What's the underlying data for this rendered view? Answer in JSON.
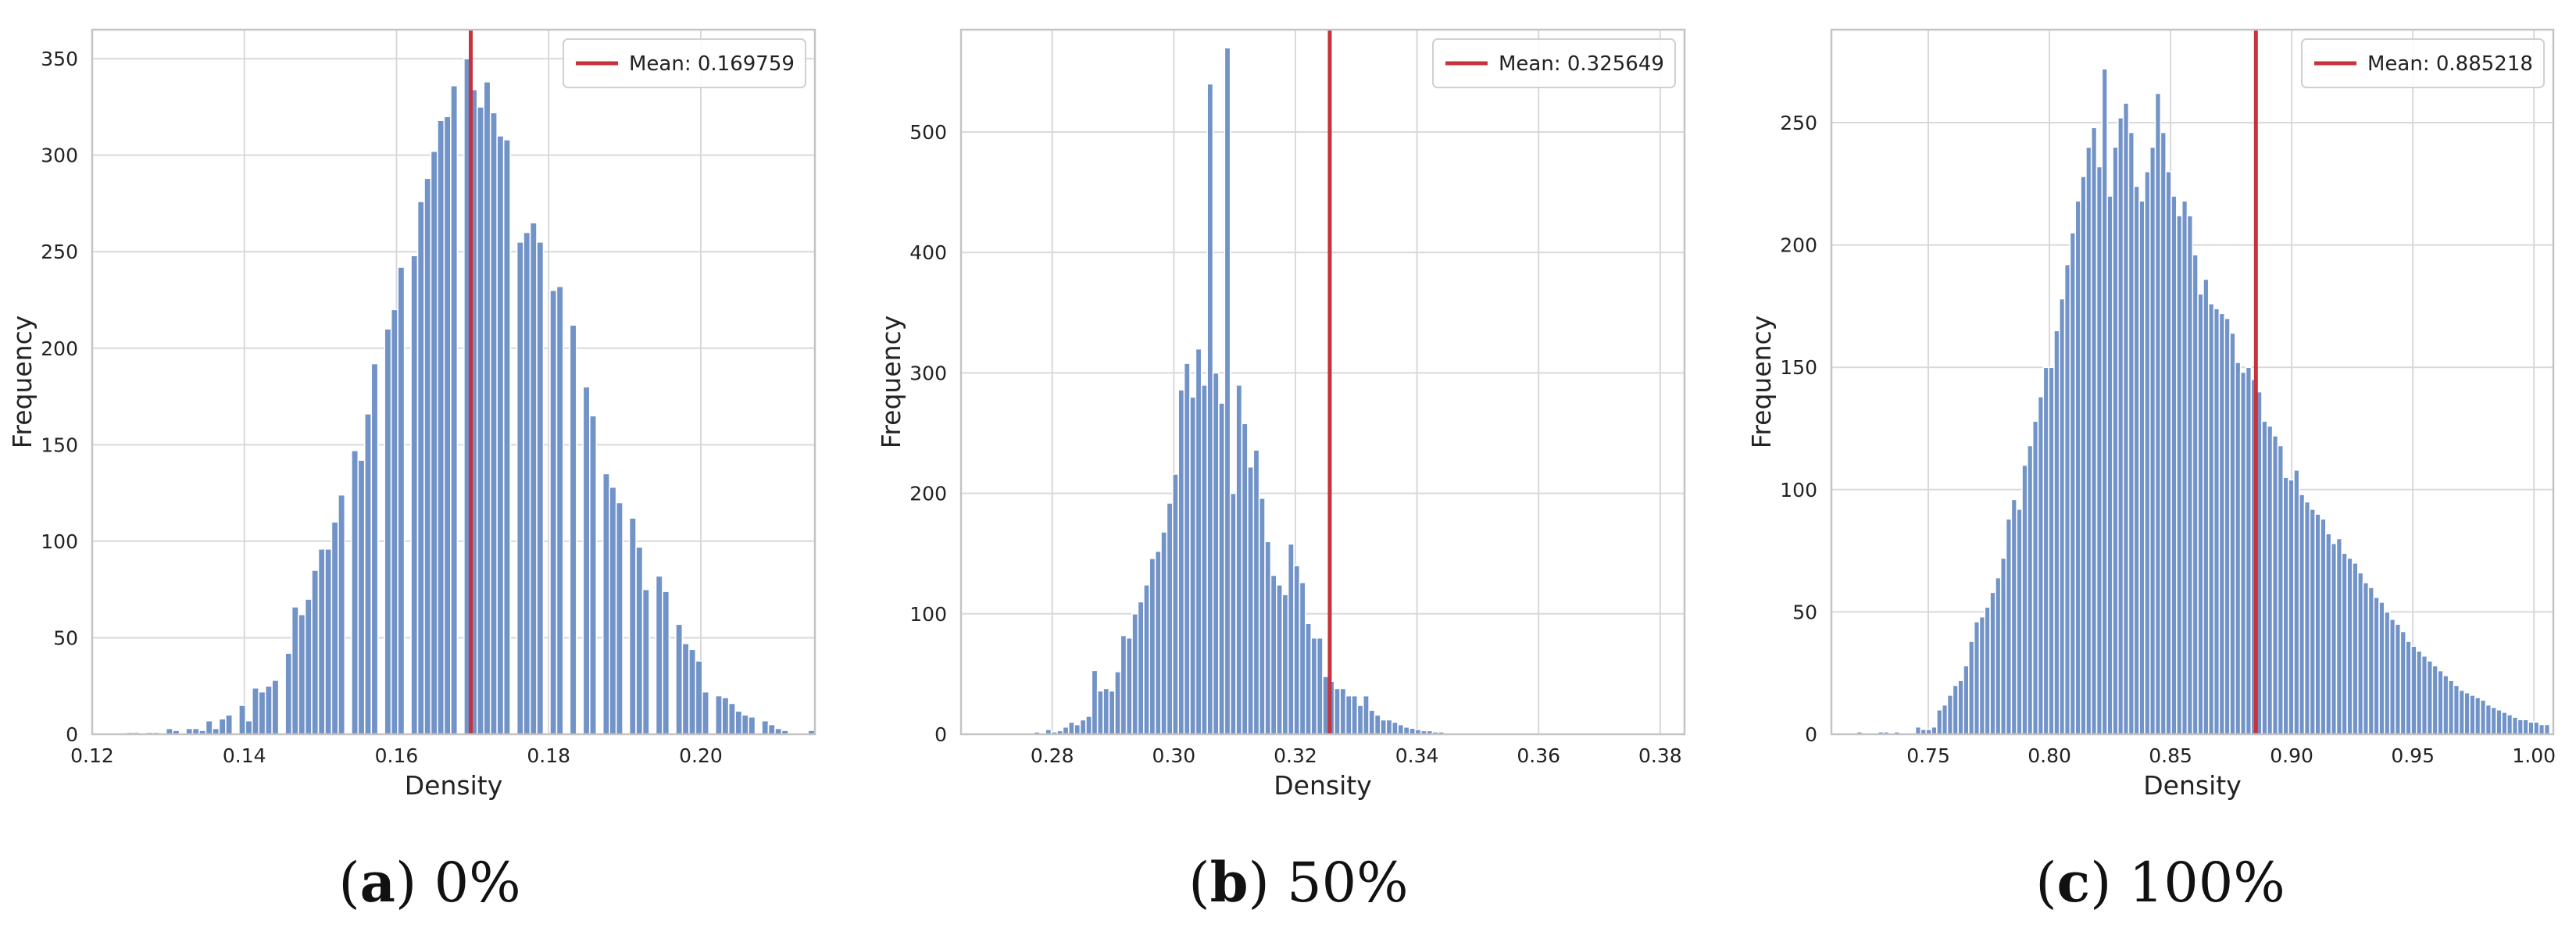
{
  "captions": [
    {
      "tag": "a",
      "text": "0%"
    },
    {
      "tag": "b",
      "text": "50%"
    },
    {
      "tag": "c",
      "text": "100%"
    }
  ],
  "colors": {
    "bar": "#7293c7",
    "bar_edge": "#ffffff",
    "mean_line": "#c8323c",
    "grid": "#d9d9d9",
    "frame": "#c4c4c4"
  },
  "chart_data": [
    {
      "type": "bar",
      "xlabel": "Density",
      "ylabel": "Frequency",
      "xlim": [
        0.12,
        0.215
      ],
      "ylim": [
        0,
        365
      ],
      "xticks": [
        "0.12",
        "0.14",
        "0.16",
        "0.18",
        "0.20"
      ],
      "yticks": [
        "0",
        "50",
        "100",
        "150",
        "200",
        "250",
        "300",
        "350"
      ],
      "legend": {
        "label": "Mean: 0.169759",
        "placement": "top-right"
      },
      "mean": 0.169759,
      "bin_start": 0.1245,
      "bin_width": 0.00087,
      "values": [
        1,
        1,
        0,
        1,
        1,
        0,
        3,
        2,
        0,
        3,
        3,
        2,
        7,
        3,
        8,
        10,
        0,
        15,
        7,
        24,
        22,
        25,
        28,
        0,
        42,
        66,
        62,
        70,
        85,
        96,
        96,
        110,
        124,
        0,
        147,
        142,
        166,
        192,
        0,
        210,
        220,
        242,
        0,
        248,
        276,
        288,
        302,
        318,
        320,
        336,
        0,
        350,
        334,
        325,
        338,
        322,
        310,
        308,
        0,
        255,
        260,
        265,
        255,
        0,
        230,
        232,
        0,
        212,
        0,
        180,
        165,
        0,
        135,
        128,
        120,
        0,
        112,
        97,
        75,
        0,
        82,
        74,
        0,
        57,
        47,
        44,
        38,
        22,
        0,
        20,
        19,
        16,
        12,
        10,
        9,
        0,
        7,
        5,
        3,
        2,
        0,
        0,
        0,
        2
      ]
    },
    {
      "type": "bar",
      "xlabel": "Density",
      "ylabel": "Frequency",
      "xlim": [
        0.265,
        0.384
      ],
      "ylim": [
        0,
        585
      ],
      "xticks": [
        "0.28",
        "0.30",
        "0.32",
        "0.34",
        "0.36",
        "0.38"
      ],
      "yticks": [
        "0",
        "100",
        "200",
        "300",
        "400",
        "500"
      ],
      "legend": {
        "label": "Mean: 0.325649",
        "placement": "top-right"
      },
      "mean": 0.325649,
      "bin_start": 0.277,
      "bin_width": 0.00095,
      "values": [
        2,
        0,
        4,
        2,
        3,
        6,
        10,
        8,
        12,
        15,
        53,
        36,
        38,
        36,
        52,
        82,
        80,
        100,
        110,
        124,
        146,
        152,
        168,
        192,
        216,
        286,
        308,
        280,
        320,
        290,
        540,
        300,
        275,
        570,
        200,
        290,
        258,
        222,
        236,
        196,
        160,
        132,
        124,
        116,
        158,
        140,
        126,
        92,
        80,
        80,
        48,
        44,
        38,
        38,
        32,
        32,
        24,
        32,
        20,
        16,
        12,
        12,
        10,
        8,
        6,
        5,
        4,
        3,
        3,
        2,
        2,
        1,
        0,
        0,
        0,
        0,
        0,
        0,
        0,
        0,
        0,
        0,
        0,
        0,
        0,
        0,
        0,
        0,
        1,
        1,
        0,
        0
      ]
    },
    {
      "type": "bar",
      "xlabel": "Density",
      "ylabel": "Frequency",
      "xlim": [
        0.71,
        1.008
      ],
      "ylim": [
        0,
        288
      ],
      "xticks": [
        "0.75",
        "0.80",
        "0.85",
        "0.90",
        "0.95",
        "1.00"
      ],
      "yticks": [
        "0",
        "50",
        "100",
        "150",
        "200",
        "250"
      ],
      "legend": {
        "label": "Mean: 0.885218",
        "placement": "top-right"
      },
      "mean": 0.885218,
      "bin_start": 0.7205,
      "bin_width": 0.0022,
      "values": [
        1,
        0,
        0,
        0,
        1,
        1,
        0,
        1,
        0,
        0,
        0,
        3,
        2,
        2,
        3,
        10,
        12,
        16,
        20,
        22,
        28,
        38,
        46,
        48,
        52,
        58,
        64,
        72,
        88,
        96,
        92,
        110,
        118,
        128,
        138,
        150,
        150,
        165,
        178,
        192,
        205,
        218,
        228,
        240,
        248,
        232,
        272,
        220,
        240,
        252,
        258,
        246,
        224,
        218,
        230,
        240,
        262,
        246,
        230,
        220,
        212,
        218,
        212,
        196,
        180,
        186,
        176,
        174,
        172,
        170,
        164,
        152,
        148,
        150,
        145,
        140,
        128,
        126,
        122,
        118,
        105,
        104,
        108,
        98,
        95,
        92,
        90,
        88,
        82,
        78,
        80,
        74,
        72,
        70,
        66,
        62,
        60,
        56,
        54,
        50,
        47,
        45,
        42,
        38,
        36,
        34,
        32,
        30,
        28,
        26,
        24,
        22,
        20,
        18,
        17,
        16,
        15,
        14,
        12,
        11,
        10,
        9,
        8,
        7,
        6,
        6,
        5,
        5,
        4,
        4
      ]
    }
  ]
}
